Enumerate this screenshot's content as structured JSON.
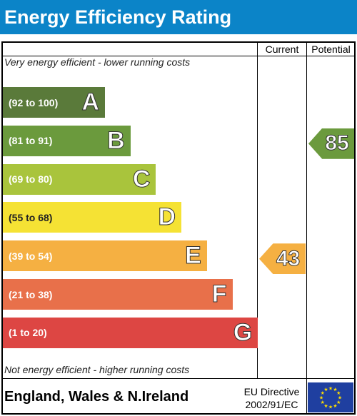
{
  "header": {
    "title": "Energy Efficiency Rating"
  },
  "columns": {
    "current": "Current",
    "potential": "Potential"
  },
  "notes": {
    "top": "Very energy efficient - lower running costs",
    "bottom": "Not energy efficient - higher running costs"
  },
  "footer": {
    "region": "England, Wales & N.Ireland",
    "directive_line1": "EU Directive",
    "directive_line2": "2002/91/EC"
  },
  "chart_data": {
    "type": "bar",
    "title": "Energy Efficiency Rating",
    "bands": [
      {
        "range": "(92 to 100)",
        "letter": "A",
        "min": 92,
        "max": 100,
        "color": "#5a7a3a"
      },
      {
        "range": "(81 to 91)",
        "letter": "B",
        "min": 81,
        "max": 91,
        "color": "#6b9a3d"
      },
      {
        "range": "(69 to 80)",
        "letter": "C",
        "min": 69,
        "max": 80,
        "color": "#a9c43c"
      },
      {
        "range": "(55 to 68)",
        "letter": "D",
        "min": 55,
        "max": 68,
        "color": "#f5e234"
      },
      {
        "range": "(39 to 54)",
        "letter": "E",
        "min": 39,
        "max": 54,
        "color": "#f5b042"
      },
      {
        "range": "(21 to 38)",
        "letter": "F",
        "min": 21,
        "max": 38,
        "color": "#e8704a"
      },
      {
        "range": "(1 to 20)",
        "letter": "G",
        "min": 1,
        "max": 20,
        "color": "#dd4643"
      }
    ],
    "current": {
      "value": 43,
      "band": "E",
      "color": "#f5b042"
    },
    "potential": {
      "value": 85,
      "band": "B",
      "color": "#6b9a3d"
    }
  },
  "colors": {
    "header": "#0b84c8",
    "flag": "#1f3fa0",
    "stars": "#ffde00"
  }
}
